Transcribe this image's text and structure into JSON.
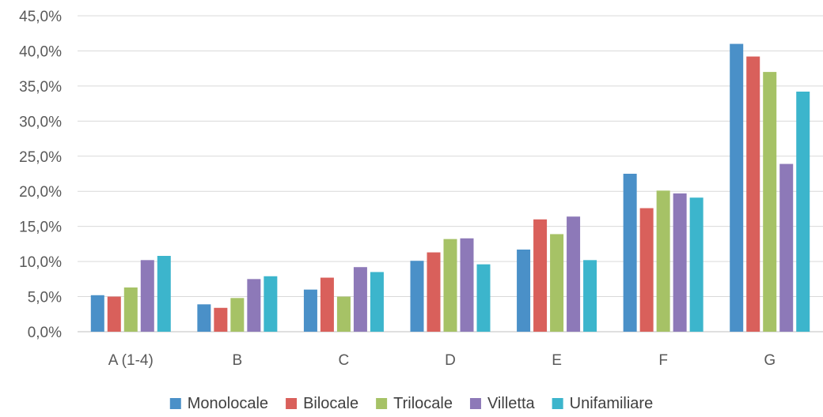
{
  "chart_data": {
    "type": "bar",
    "title": "",
    "xlabel": "",
    "ylabel": "",
    "categories": [
      "A (1-4)",
      "B",
      "C",
      "D",
      "E",
      "F",
      "G"
    ],
    "ylim": [
      0,
      45
    ],
    "yticks": [
      0,
      5,
      10,
      15,
      20,
      25,
      30,
      35,
      40,
      45
    ],
    "ytick_labels": [
      "0,0%",
      "5,0%",
      "10,0%",
      "15,0%",
      "20,0%",
      "25,0%",
      "30,0%",
      "35,0%",
      "40,0%",
      "45,0%"
    ],
    "grid": true,
    "legend_position": "bottom",
    "series": [
      {
        "name": "Monolocale",
        "color": "#4a90c8",
        "values": [
          5.2,
          3.9,
          6.0,
          10.1,
          11.7,
          22.5,
          41.0
        ]
      },
      {
        "name": "Bilocale",
        "color": "#d9605b",
        "values": [
          5.0,
          3.4,
          7.7,
          11.3,
          16.0,
          17.6,
          39.2
        ]
      },
      {
        "name": "Trilocale",
        "color": "#a6c266",
        "values": [
          6.3,
          4.8,
          5.0,
          13.2,
          13.9,
          20.1,
          37.0
        ]
      },
      {
        "name": "Villetta",
        "color": "#8d79b8",
        "values": [
          10.2,
          7.5,
          9.2,
          13.3,
          16.4,
          19.7,
          23.9
        ]
      },
      {
        "name": "Unifamiliare",
        "color": "#3cb5cc",
        "values": [
          10.8,
          7.9,
          8.5,
          9.6,
          10.2,
          19.1,
          34.2
        ]
      }
    ]
  }
}
